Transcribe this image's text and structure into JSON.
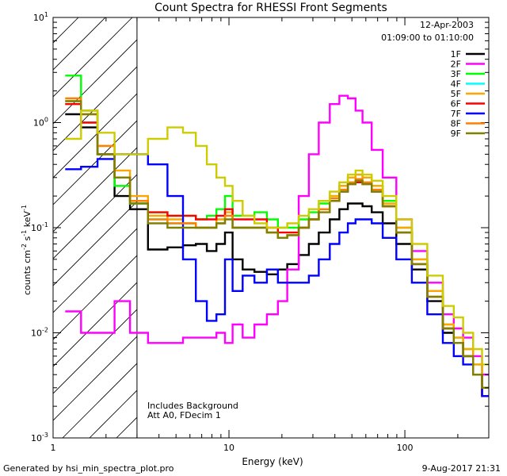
{
  "chart_data": {
    "type": "line",
    "title": "Count Spectra for RHESSI Front Segments",
    "xlabel": "Energy (keV)",
    "ylabel_base": "counts cm",
    "ylabel_sup1": "-2",
    "ylabel_mid": " s",
    "ylabel_sup2": "-1",
    "ylabel_end": " keV",
    "ylabel_sup3": "-1",
    "xscale": "log",
    "yscale": "log",
    "xlim": [
      1,
      300
    ],
    "ylim": [
      0.001,
      10
    ],
    "x_ticks": [
      {
        "value": 1,
        "label": "1"
      },
      {
        "value": 10,
        "label": "10"
      },
      {
        "value": 100,
        "label": "100"
      }
    ],
    "y_ticks": [
      {
        "value": 0.001,
        "base": "10",
        "exp": "-3"
      },
      {
        "value": 0.01,
        "base": "10",
        "exp": "-2"
      },
      {
        "value": 0.1,
        "base": "10",
        "exp": "-1"
      },
      {
        "value": 1,
        "base": "10",
        "exp": "0"
      },
      {
        "value": 10,
        "base": "10",
        "exp": "1"
      }
    ],
    "hatched_region": {
      "x_from": 1,
      "x_to": 3
    },
    "date": "12-Apr-2003",
    "time_range": "01:09:00 to 01:10:00",
    "annotation_line1": "Includes Background",
    "annotation_line2": "Att A0, FDecim 1",
    "legend_position": "top-right",
    "energies": [
      1.3,
      1.6,
      2,
      2.5,
      3,
      4,
      5,
      6,
      7,
      8,
      9,
      10,
      11,
      13,
      15,
      18,
      20,
      23,
      27,
      30,
      35,
      40,
      45,
      50,
      55,
      60,
      70,
      80,
      100,
      120,
      150,
      180,
      200,
      230,
      260,
      290
    ],
    "series": [
      {
        "name": "1F",
        "color": "#000000",
        "values": [
          1.2,
          0.9,
          0.5,
          0.2,
          0.15,
          0.062,
          0.065,
          0.068,
          0.07,
          0.06,
          0.07,
          0.09,
          0.05,
          0.04,
          0.038,
          0.036,
          0.04,
          0.045,
          0.055,
          0.07,
          0.09,
          0.12,
          0.15,
          0.17,
          0.17,
          0.16,
          0.14,
          0.11,
          0.07,
          0.04,
          0.02,
          0.01,
          0.008,
          0.006,
          0.004,
          0.0025
        ]
      },
      {
        "name": "2F",
        "color": "#ff00ff",
        "values": [
          0.016,
          0.01,
          0.01,
          0.02,
          0.01,
          0.008,
          0.008,
          0.009,
          0.009,
          0.009,
          0.01,
          0.008,
          0.012,
          0.009,
          0.012,
          0.015,
          0.02,
          0.04,
          0.2,
          0.5,
          1.0,
          1.5,
          1.8,
          1.7,
          1.3,
          1.0,
          0.55,
          0.3,
          0.12,
          0.06,
          0.03,
          0.015,
          0.011,
          0.009,
          0.006,
          0.004
        ]
      },
      {
        "name": "3F",
        "color": "#00ff00",
        "values": [
          2.8,
          1.3,
          0.5,
          0.25,
          0.17,
          0.14,
          0.13,
          0.13,
          0.12,
          0.13,
          0.15,
          0.2,
          0.13,
          0.13,
          0.14,
          0.12,
          0.1,
          0.1,
          0.12,
          0.14,
          0.17,
          0.2,
          0.25,
          0.3,
          0.32,
          0.3,
          0.25,
          0.18,
          0.1,
          0.05,
          0.025,
          0.012,
          0.009,
          0.007,
          0.005,
          0.003
        ]
      },
      {
        "name": "4F",
        "color": "#00ffff",
        "values": [
          1.5,
          1.0,
          0.5,
          0.3,
          0.17,
          0.12,
          0.11,
          0.11,
          0.1,
          0.1,
          0.12,
          0.15,
          0.1,
          0.1,
          0.1,
          0.09,
          0.08,
          0.085,
          0.1,
          0.12,
          0.15,
          0.18,
          0.22,
          0.26,
          0.28,
          0.26,
          0.22,
          0.16,
          0.09,
          0.045,
          0.022,
          0.011,
          0.008,
          0.006,
          0.004,
          0.003
        ]
      },
      {
        "name": "5F",
        "color": "#ffa500",
        "values": [
          1.6,
          1.2,
          0.6,
          0.35,
          0.2,
          0.13,
          0.12,
          0.11,
          0.1,
          0.1,
          0.12,
          0.14,
          0.1,
          0.1,
          0.1,
          0.09,
          0.08,
          0.085,
          0.1,
          0.12,
          0.15,
          0.2,
          0.25,
          0.3,
          0.32,
          0.3,
          0.25,
          0.17,
          0.1,
          0.05,
          0.025,
          0.012,
          0.009,
          0.007,
          0.005,
          0.003
        ]
      },
      {
        "name": "6F",
        "color": "#ff0000",
        "values": [
          1.5,
          1.0,
          0.5,
          0.3,
          0.18,
          0.14,
          0.13,
          0.13,
          0.12,
          0.12,
          0.13,
          0.15,
          0.12,
          0.12,
          0.12,
          0.1,
          0.09,
          0.09,
          0.1,
          0.12,
          0.15,
          0.18,
          0.22,
          0.26,
          0.27,
          0.26,
          0.22,
          0.16,
          0.09,
          0.045,
          0.022,
          0.011,
          0.008,
          0.006,
          0.004,
          0.0025
        ]
      },
      {
        "name": "7F",
        "color": "#0000ff",
        "values": [
          0.36,
          0.38,
          0.45,
          0.5,
          0.5,
          0.4,
          0.2,
          0.05,
          0.02,
          0.013,
          0.015,
          0.05,
          0.025,
          0.035,
          0.03,
          0.04,
          0.03,
          0.03,
          0.03,
          0.035,
          0.05,
          0.07,
          0.09,
          0.11,
          0.12,
          0.12,
          0.11,
          0.08,
          0.05,
          0.03,
          0.015,
          0.008,
          0.006,
          0.005,
          0.004,
          0.0025
        ]
      },
      {
        "name": "8F",
        "color": "#ff8000",
        "values": [
          1.7,
          1.3,
          0.6,
          0.3,
          0.18,
          0.12,
          0.11,
          0.11,
          0.1,
          0.1,
          0.11,
          0.13,
          0.1,
          0.1,
          0.1,
          0.09,
          0.08,
          0.085,
          0.1,
          0.12,
          0.15,
          0.19,
          0.23,
          0.27,
          0.29,
          0.27,
          0.23,
          0.16,
          0.09,
          0.045,
          0.022,
          0.011,
          0.008,
          0.006,
          0.004,
          0.003
        ]
      },
      {
        "name": "9F",
        "color": "#808000",
        "values": [
          1.6,
          1.2,
          0.5,
          0.3,
          0.17,
          0.11,
          0.1,
          0.1,
          0.1,
          0.1,
          0.11,
          0.12,
          0.1,
          0.1,
          0.1,
          0.09,
          0.08,
          0.085,
          0.1,
          0.12,
          0.14,
          0.18,
          0.22,
          0.26,
          0.28,
          0.26,
          0.22,
          0.16,
          0.09,
          0.045,
          0.022,
          0.011,
          0.008,
          0.006,
          0.004,
          0.003
        ]
      },
      {
        "name": "yellow",
        "color": "#cccc00",
        "legend": false,
        "values": [
          0.7,
          1.3,
          0.8,
          0.5,
          0.5,
          0.7,
          0.9,
          0.8,
          0.6,
          0.4,
          0.3,
          0.25,
          0.18,
          0.13,
          0.11,
          0.1,
          0.1,
          0.11,
          0.13,
          0.15,
          0.18,
          0.22,
          0.27,
          0.32,
          0.35,
          0.32,
          0.28,
          0.2,
          0.12,
          0.07,
          0.035,
          0.018,
          0.014,
          0.01,
          0.007,
          0.005
        ]
      }
    ]
  },
  "footer": {
    "left": "Generated by hsi_min_spectra_plot.pro",
    "right": "9-Aug-2017 21:31"
  }
}
